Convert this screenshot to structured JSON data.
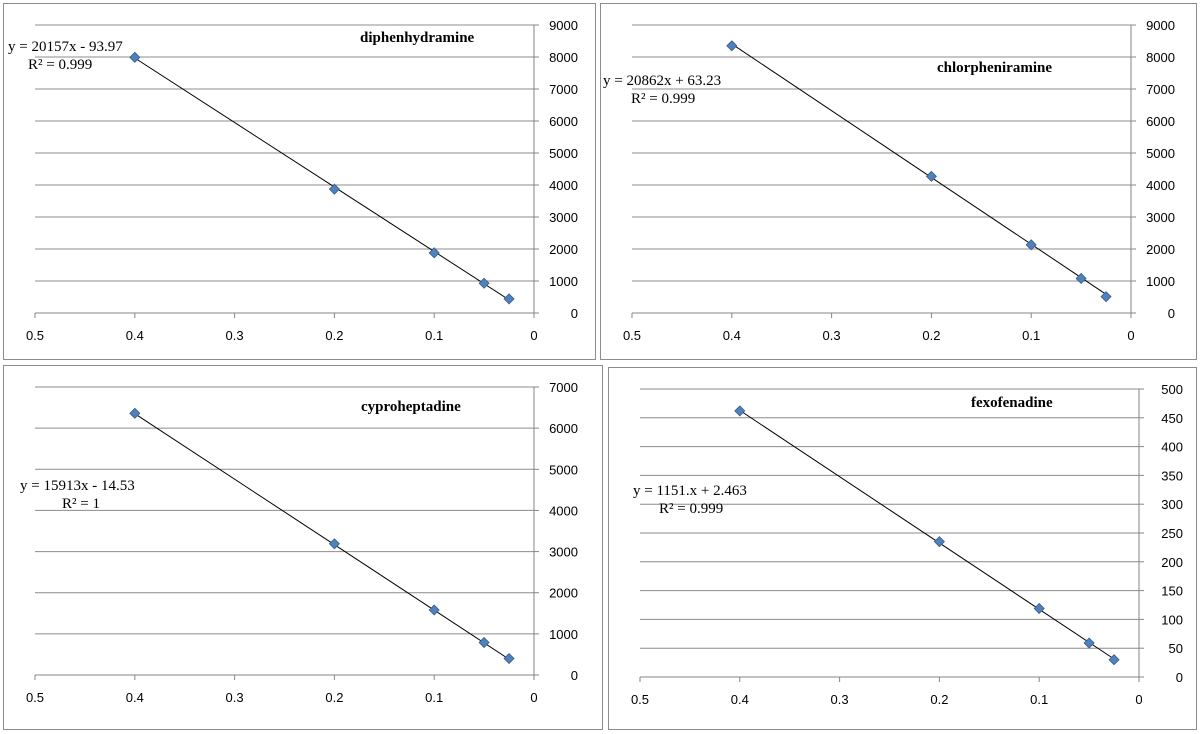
{
  "chart_data": [
    {
      "type": "scatter",
      "title": "diphenhydramine",
      "trendline": {
        "slope": 20157,
        "intercept": -93.97
      },
      "equation": "y = 20157x - 93.97",
      "r_squared": "R² = 0.999",
      "x_reversed": true,
      "xlim": [
        0,
        0.5
      ],
      "ylim": [
        0,
        9000
      ],
      "x_ticks": [
        0.5,
        0.4,
        0.3,
        0.2,
        0.1,
        0
      ],
      "y_ticks": [
        0,
        1000,
        2000,
        3000,
        4000,
        5000,
        6000,
        7000,
        8000,
        9000
      ],
      "grid": "horizontal",
      "y_axis_side": "right",
      "series": [
        {
          "x": [
            0.4,
            0.2,
            0.1,
            0.05,
            0.025
          ],
          "y": [
            7990,
            3870,
            1880,
            930,
            440
          ]
        }
      ],
      "marker_color": "#4f81bd"
    },
    {
      "type": "scatter",
      "title": "chlorpheniramine",
      "trendline": {
        "slope": 20862,
        "intercept": 63.23
      },
      "equation": "y = 20862x + 63.23",
      "r_squared": "R² = 0.999",
      "x_reversed": true,
      "xlim": [
        0,
        0.5
      ],
      "ylim": [
        0,
        9000
      ],
      "x_ticks": [
        0.5,
        0.4,
        0.3,
        0.2,
        0.1,
        0
      ],
      "y_ticks": [
        0,
        1000,
        2000,
        3000,
        4000,
        5000,
        6000,
        7000,
        8000,
        9000
      ],
      "grid": "horizontal",
      "y_axis_side": "right",
      "series": [
        {
          "x": [
            0.4,
            0.2,
            0.1,
            0.05,
            0.025
          ],
          "y": [
            8350,
            4270,
            2130,
            1080,
            510
          ]
        }
      ],
      "marker_color": "#4f81bd"
    },
    {
      "type": "scatter",
      "title": "cyproheptadine",
      "trendline": {
        "slope": 15913,
        "intercept": -14.53
      },
      "equation": "y = 15913x - 14.53",
      "r_squared": "R² = 1",
      "x_reversed": true,
      "xlim": [
        0,
        0.5
      ],
      "ylim": [
        0,
        7000
      ],
      "x_ticks": [
        0.5,
        0.4,
        0.3,
        0.2,
        0.1,
        0
      ],
      "y_ticks": [
        0,
        1000,
        2000,
        3000,
        4000,
        5000,
        6000,
        7000
      ],
      "grid": "horizontal",
      "y_axis_side": "right",
      "series": [
        {
          "x": [
            0.4,
            0.2,
            0.1,
            0.05,
            0.025
          ],
          "y": [
            6360,
            3190,
            1580,
            790,
            400
          ]
        }
      ],
      "marker_color": "#4f81bd"
    },
    {
      "type": "scatter",
      "title": "fexofenadine",
      "trendline": {
        "slope": 1151,
        "intercept": 2.463
      },
      "equation": "y = 1151.x + 2.463",
      "r_squared": "R² = 0.999",
      "x_reversed": true,
      "xlim": [
        0,
        0.5
      ],
      "ylim": [
        0,
        500
      ],
      "x_ticks": [
        0.5,
        0.4,
        0.3,
        0.2,
        0.1,
        0
      ],
      "y_ticks": [
        0,
        50,
        100,
        150,
        200,
        250,
        300,
        350,
        400,
        450,
        500
      ],
      "grid": "horizontal",
      "y_axis_side": "right",
      "series": [
        {
          "x": [
            0.4,
            0.2,
            0.1,
            0.05,
            0.025
          ],
          "y": [
            462,
            235,
            119,
            59,
            30
          ]
        }
      ],
      "marker_color": "#4f81bd"
    }
  ]
}
